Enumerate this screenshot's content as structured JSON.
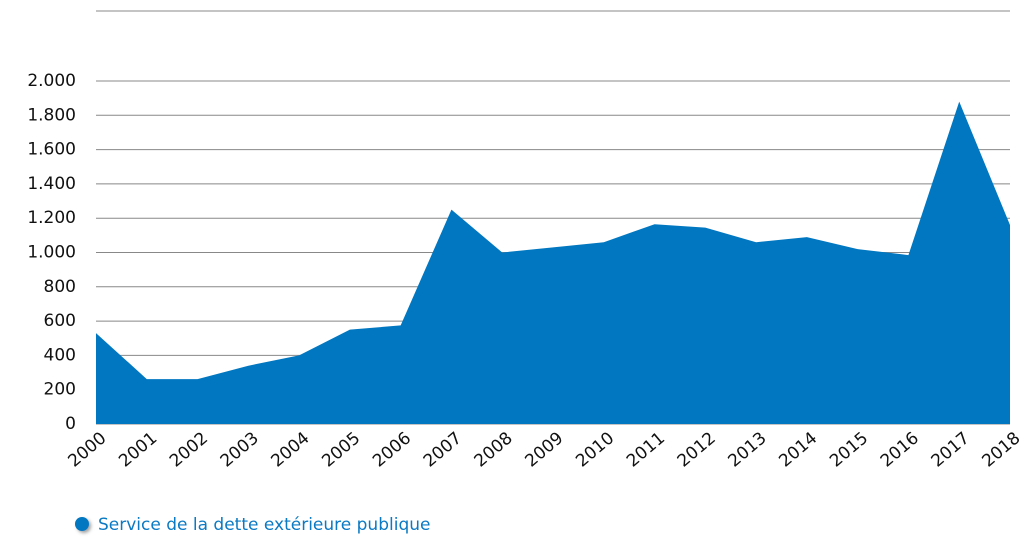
{
  "chart_data": {
    "type": "area",
    "categories": [
      "2000",
      "2001",
      "2002",
      "2003",
      "2004",
      "2005",
      "2006",
      "2007",
      "2008",
      "2009",
      "2010",
      "2011",
      "2012",
      "2013",
      "2014",
      "2015",
      "2016",
      "2017",
      "2018"
    ],
    "series": [
      {
        "name": "Service de la dette extérieure publique",
        "color": "#0077c0",
        "values": [
          530,
          262,
          262,
          340,
          400,
          550,
          575,
          1250,
          1000,
          1030,
          1060,
          1165,
          1145,
          1060,
          1090,
          1020,
          985,
          1880,
          1160
        ]
      }
    ],
    "ylim": [
      0,
      2000
    ],
    "yticks": [
      0,
      200,
      400,
      600,
      800,
      {
        "value": 1000,
        "label": "1.000"
      },
      {
        "value": 1200,
        "label": "1.200"
      },
      {
        "value": 1400,
        "label": "1.400"
      },
      {
        "value": 1600,
        "label": "1.600"
      },
      {
        "value": 1800,
        "label": "1.800"
      },
      {
        "value": 2000,
        "label": "2.000"
      }
    ],
    "grid": true
  }
}
